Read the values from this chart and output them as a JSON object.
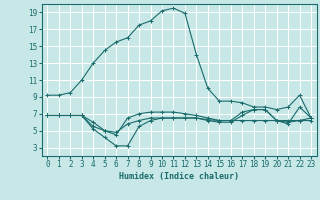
{
  "xlabel": "Humidex (Indice chaleur)",
  "xlim": [
    -0.5,
    23.5
  ],
  "ylim": [
    2,
    20
  ],
  "yticks": [
    3,
    5,
    7,
    9,
    11,
    13,
    15,
    17,
    19
  ],
  "xticks": [
    0,
    1,
    2,
    3,
    4,
    5,
    6,
    7,
    8,
    9,
    10,
    11,
    12,
    13,
    14,
    15,
    16,
    17,
    18,
    19,
    20,
    21,
    22,
    23
  ],
  "background_color": "#c8e8e8",
  "grid_color": "#ffffff",
  "line_color": "#1a6b6b",
  "series": [
    {
      "x": [
        0,
        1,
        2,
        3,
        4,
        5,
        6,
        7,
        8,
        9,
        10,
        11,
        12,
        13,
        14,
        15,
        16,
        17,
        18,
        19,
        20,
        21,
        22,
        23
      ],
      "y": [
        9.2,
        9.2,
        9.5,
        11.0,
        13.0,
        14.5,
        15.5,
        16.0,
        17.5,
        18.0,
        19.2,
        19.5,
        18.9,
        14.0,
        10.0,
        8.5,
        8.5,
        8.3,
        7.8,
        7.8,
        7.5,
        7.8,
        9.2,
        6.5
      ]
    },
    {
      "x": [
        0,
        1,
        2,
        3,
        4,
        5,
        6,
        7,
        8,
        9,
        10,
        11,
        12,
        13,
        14,
        15,
        16,
        17,
        18,
        19,
        20,
        21,
        22,
        23
      ],
      "y": [
        6.8,
        6.8,
        6.8,
        6.8,
        5.2,
        4.2,
        3.2,
        3.2,
        5.5,
        6.2,
        6.5,
        6.5,
        6.5,
        6.5,
        6.3,
        6.2,
        6.2,
        6.2,
        6.2,
        6.2,
        6.2,
        6.2,
        6.2,
        6.2
      ]
    },
    {
      "x": [
        0,
        1,
        2,
        3,
        4,
        5,
        6,
        7,
        8,
        9,
        10,
        11,
        12,
        13,
        14,
        15,
        16,
        17,
        18,
        19,
        20,
        21,
        22,
        23
      ],
      "y": [
        6.8,
        6.8,
        6.8,
        6.8,
        6.0,
        5.0,
        4.5,
        6.5,
        7.0,
        7.2,
        7.2,
        7.2,
        7.0,
        6.8,
        6.5,
        6.2,
        6.2,
        7.2,
        7.5,
        7.5,
        6.2,
        6.0,
        6.2,
        6.5
      ]
    },
    {
      "x": [
        0,
        1,
        2,
        3,
        4,
        5,
        6,
        7,
        8,
        9,
        10,
        11,
        12,
        13,
        14,
        15,
        16,
        17,
        18,
        19,
        20,
        21,
        22,
        23
      ],
      "y": [
        6.8,
        6.8,
        6.8,
        6.8,
        5.5,
        5.0,
        4.8,
        5.8,
        6.2,
        6.5,
        6.5,
        6.5,
        6.5,
        6.5,
        6.2,
        6.0,
        6.0,
        6.8,
        7.5,
        7.5,
        6.2,
        5.8,
        7.8,
        6.5
      ]
    }
  ]
}
